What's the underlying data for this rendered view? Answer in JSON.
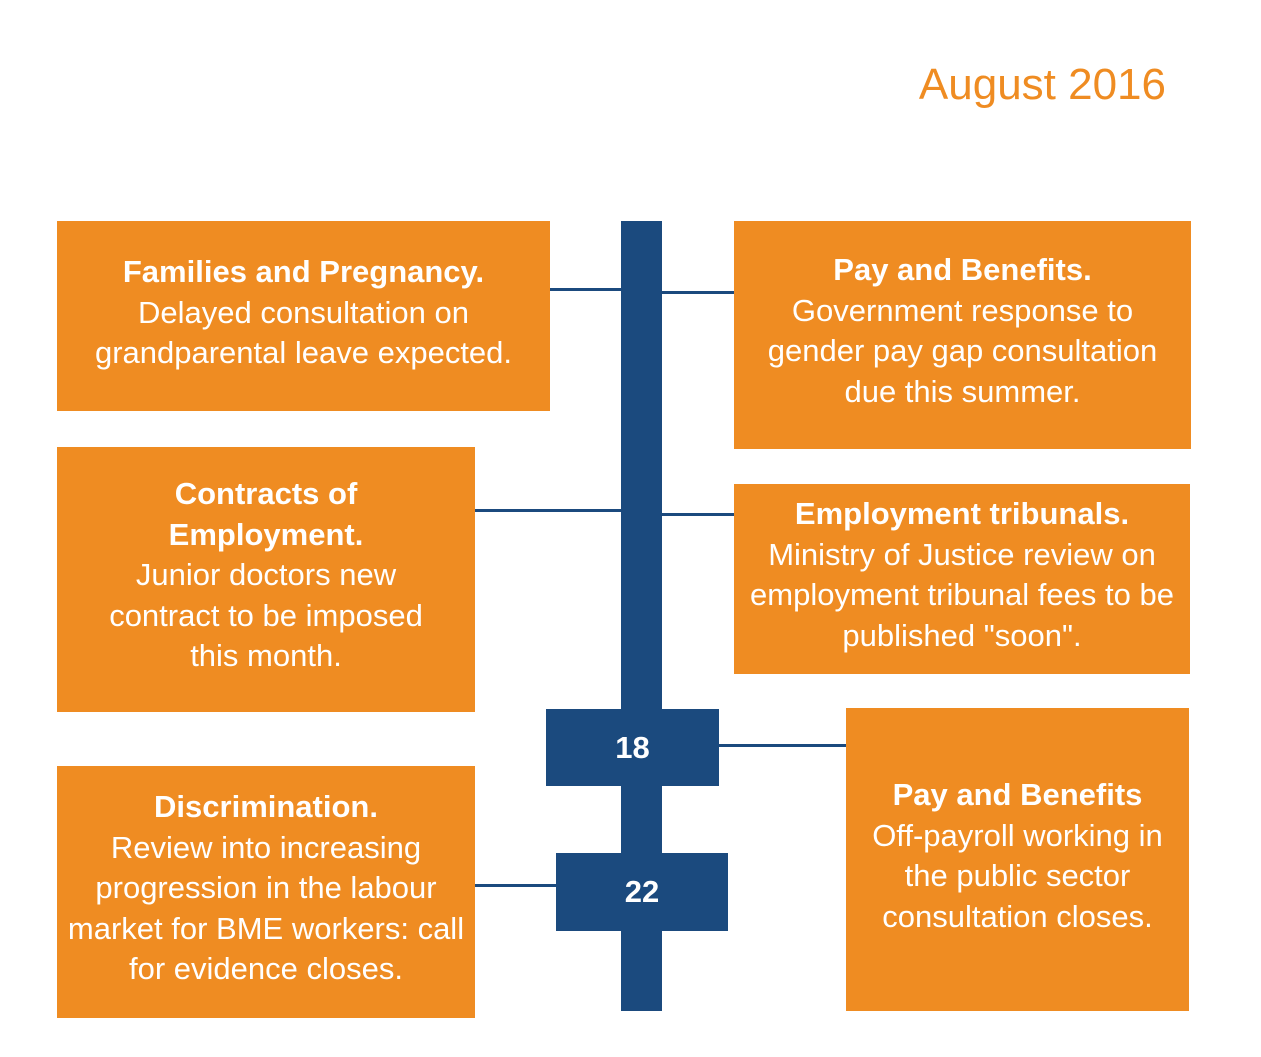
{
  "title": "August 2016",
  "colors": {
    "accent": "#EF8C22",
    "timeline": "#1B4A7E"
  },
  "events": [
    {
      "heading": "Families and Pregnancy.",
      "body": "Delayed consultation on grandparental leave expected."
    },
    {
      "heading": "Pay and Benefits.",
      "body": "Government response to gender pay gap consultation due this summer."
    },
    {
      "heading": "Contracts of Employment.",
      "body": "Junior doctors new contract to be imposed this month."
    },
    {
      "heading": "Employment tribunals.",
      "body": "Ministry of Justice review on employment tribunal fees to be published \"soon\"."
    },
    {
      "heading": "Pay and Benefits",
      "body": "Off-payroll working in the public sector consultation closes."
    },
    {
      "heading": "Discrimination.",
      "body": "Review into increasing progression in the labour market for BME workers: call for evidence closes."
    }
  ],
  "dates": [
    "18",
    "22"
  ]
}
